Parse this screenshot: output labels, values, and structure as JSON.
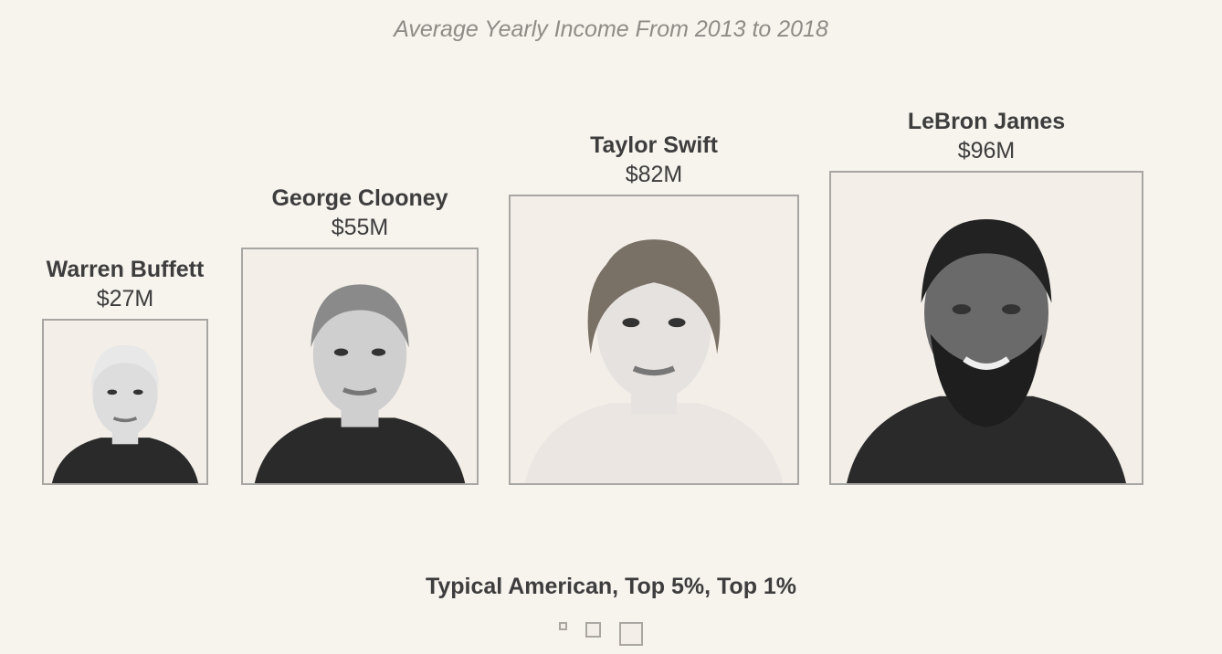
{
  "chart_data": {
    "type": "proportional-squares",
    "title": "Average Yearly Income From 2013 to 2018",
    "unit": "$M",
    "items": [
      {
        "name": "Warren Buffett",
        "value": 27,
        "label": "$27M"
      },
      {
        "name": "George Clooney",
        "value": 55,
        "label": "$55M"
      },
      {
        "name": "Taylor Swift",
        "value": 82,
        "label": "$82M"
      },
      {
        "name": "LeBron James",
        "value": 96,
        "label": "$96M"
      }
    ],
    "legend": {
      "title": "Typical American, Top 5%, Top 1%",
      "items": [
        "Typical American",
        "Top 5%",
        "Top 1%"
      ]
    }
  }
}
